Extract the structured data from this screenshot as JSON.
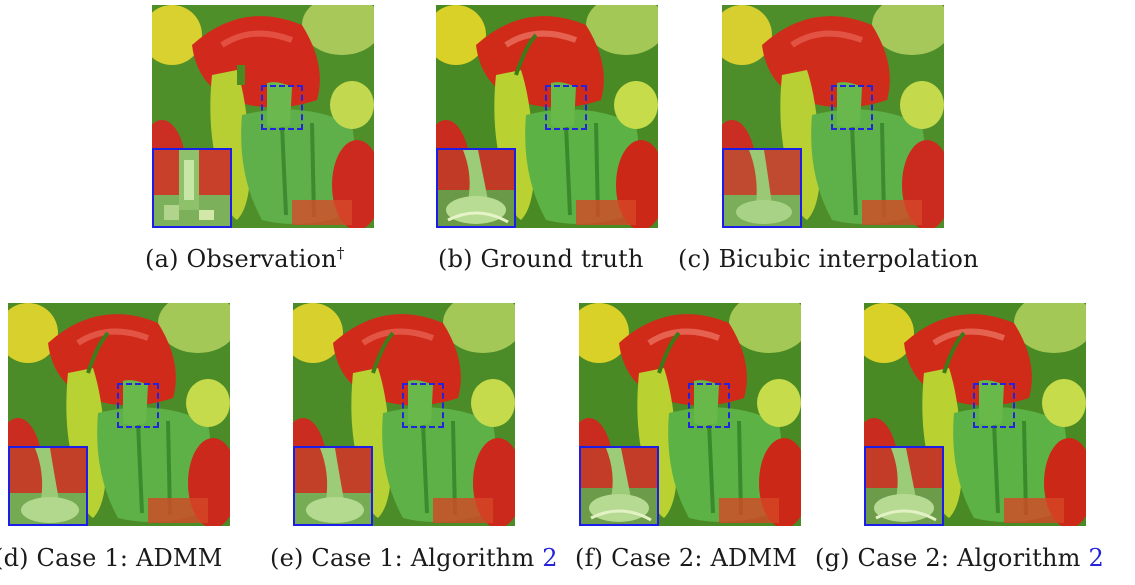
{
  "colors": {
    "roi_box": "#2323e0",
    "inset_border": "#1d1de8",
    "reference_link": "#2323d8"
  },
  "image_content": "peppers",
  "panels_top": [
    {
      "label": "(a)",
      "text": "Observation",
      "sup": "†",
      "ref": ""
    },
    {
      "label": "(b)",
      "text": "Ground truth",
      "sup": "",
      "ref": ""
    },
    {
      "label": "(c)",
      "text": "Bicubic interpolation",
      "sup": "",
      "ref": ""
    }
  ],
  "panels_bottom": [
    {
      "label": "(d)",
      "text": "Case 1:  ADMM",
      "sup": "",
      "ref": ""
    },
    {
      "label": "(e)",
      "text": "Case 1:  Algorithm",
      "sup": "",
      "ref": "2"
    },
    {
      "label": "(f)",
      "text": "Case 2:  ADMM",
      "sup": "",
      "ref": ""
    },
    {
      "label": "(g)",
      "text": "Case 2:  Algorithm",
      "sup": "",
      "ref": "2"
    }
  ]
}
